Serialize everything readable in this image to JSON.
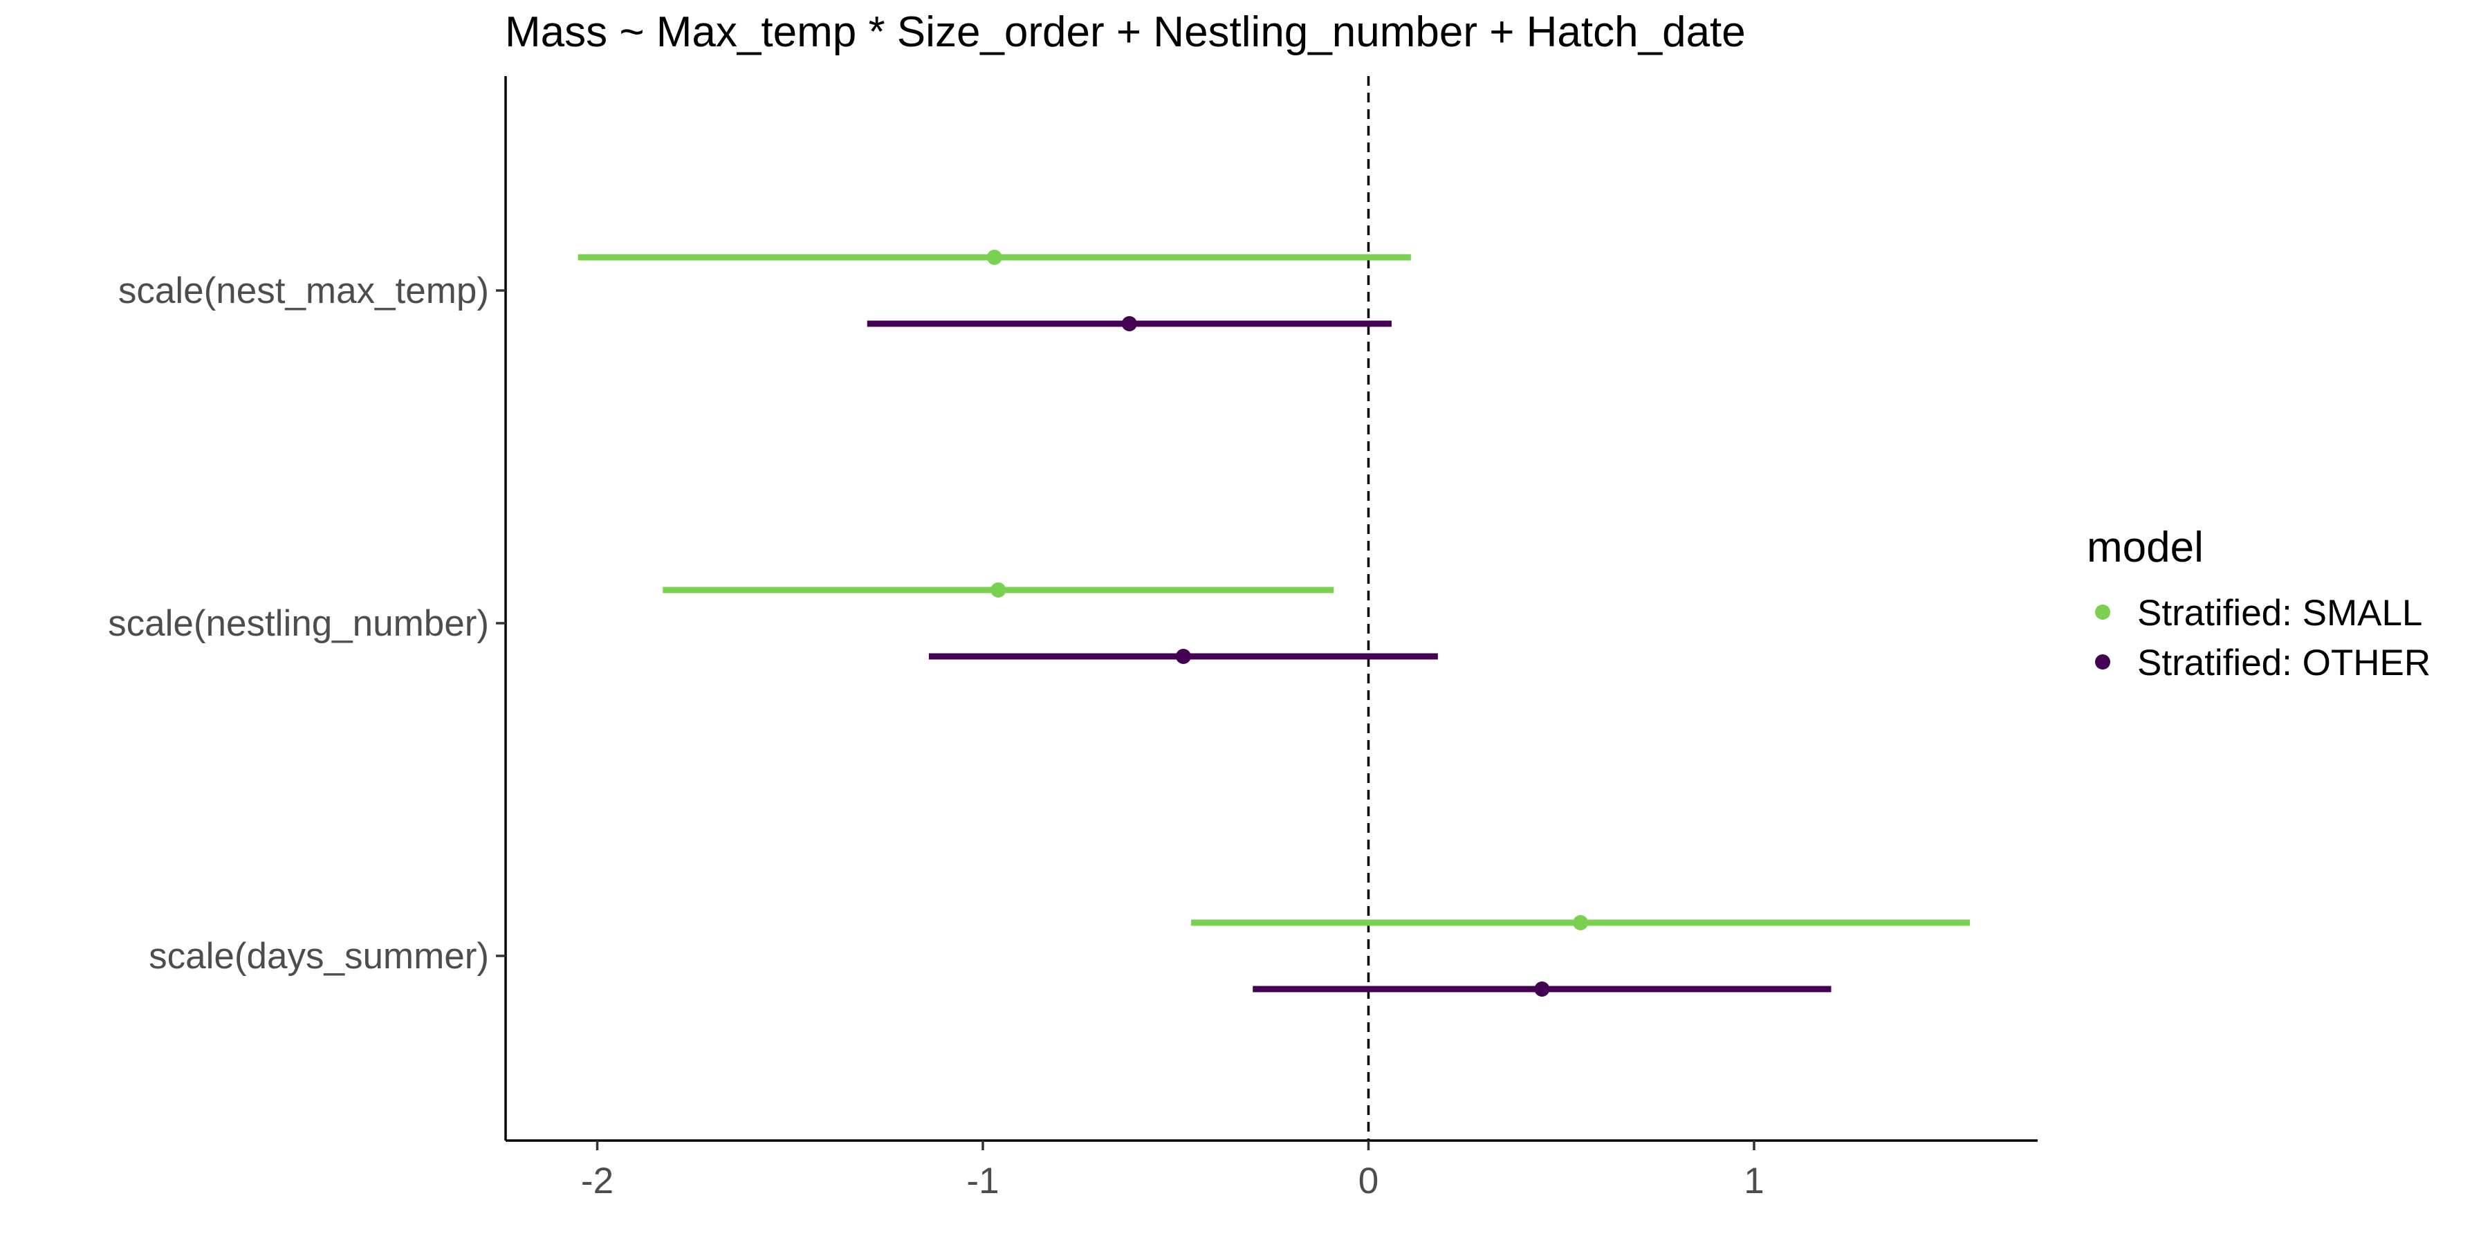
{
  "chart_data": {
    "type": "scatter",
    "subtype": "coefficient-plot",
    "title": "Mass ~ Max_temp * Size_order + Nestling_number + Hatch_date",
    "xlabel": "",
    "ylabel": "",
    "xlim": [
      -2.25,
      1.72
    ],
    "x_ticks": [
      -2,
      -1,
      0,
      1
    ],
    "x_tick_labels": [
      "-2",
      "-1",
      "0",
      "1"
    ],
    "categories": [
      "scale(nest_max_temp)",
      "scale(nestling_number)",
      "scale(days_summer)"
    ],
    "reference_line": {
      "x": 0,
      "style": "dashed"
    },
    "grid": false,
    "legend": {
      "title": "model",
      "position": "right"
    },
    "series": [
      {
        "name": "Stratified: SMALL",
        "color": "#7AD151",
        "estimates": [
          -0.97,
          -0.96,
          0.55
        ],
        "lower": [
          -2.05,
          -1.83,
          -0.46
        ],
        "upper": [
          0.11,
          -0.09,
          1.56
        ]
      },
      {
        "name": "Stratified: OTHER",
        "color": "#440154",
        "estimates": [
          -0.62,
          -0.48,
          0.45
        ],
        "lower": [
          -1.3,
          -1.14,
          -0.3
        ],
        "upper": [
          0.06,
          0.18,
          1.2
        ]
      }
    ]
  }
}
